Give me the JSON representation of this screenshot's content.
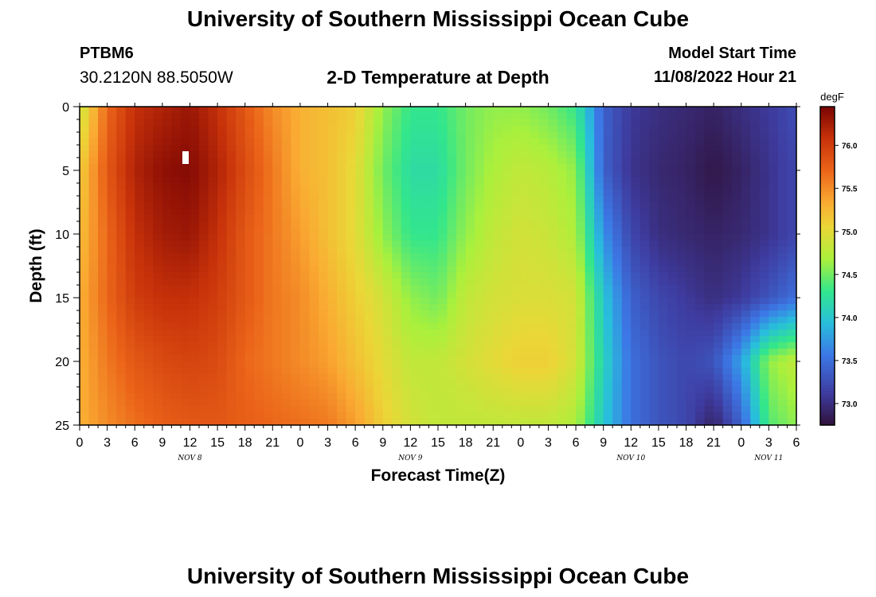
{
  "header": {
    "title": "University of Southern Mississippi Ocean Cube",
    "station_id": "PTBM6",
    "coordinates": "30.2120N  88.5050W",
    "subtitle": "2-D Temperature at Depth",
    "start_label": "Model Start Time",
    "start_value": "11/08/2022 Hour 21"
  },
  "footer": {
    "title": "University of Southern Mississippi Ocean Cube"
  },
  "chart_data": {
    "type": "heatmap",
    "title": "2-D Temperature at Depth",
    "xlabel": "Forecast Time(Z)",
    "ylabel": "Depth (ft)",
    "colorbar_label": "degF",
    "x_tick_labels": [
      "0",
      "3",
      "6",
      "9",
      "12",
      "15",
      "18",
      "21",
      "0",
      "3",
      "6",
      "9",
      "12",
      "15",
      "18",
      "21",
      "0",
      "3",
      "6",
      "9",
      "12",
      "15",
      "18",
      "21",
      "0",
      "3",
      "6"
    ],
    "x_date_labels": [
      {
        "label": "NOV 8",
        "hour_offset": 12
      },
      {
        "label": "NOV 9",
        "hour_offset": 36
      },
      {
        "label": "NOV 10",
        "hour_offset": 60
      },
      {
        "label": "NOV 11",
        "hour_offset": 75
      }
    ],
    "xlim": [
      0,
      78
    ],
    "y_ticks": [
      0,
      5,
      10,
      15,
      20,
      25
    ],
    "ylim": [
      0,
      25
    ],
    "colorbar_ticks": [
      73.0,
      73.5,
      74.0,
      74.5,
      75.0,
      75.5,
      76.0
    ],
    "colorbar_range": [
      72.75,
      76.45
    ],
    "depths_ft": [
      0,
      5,
      10,
      15,
      20,
      25
    ],
    "times_h": [
      0,
      3,
      6,
      9,
      12,
      15,
      18,
      21,
      24,
      27,
      30,
      33,
      36,
      39,
      42,
      45,
      48,
      51,
      54,
      57,
      60,
      63,
      66,
      69,
      72,
      75,
      78
    ],
    "temperature_degF": [
      [
        74.8,
        75.7,
        76.1,
        76.2,
        76.3,
        76.1,
        75.8,
        75.5,
        75.3,
        75.2,
        75.1,
        74.6,
        74.3,
        74.3,
        74.5,
        74.6,
        74.6,
        74.5,
        74.3,
        73.4,
        73.1,
        73.0,
        72.95,
        72.9,
        73.0,
        73.1,
        73.25
      ],
      [
        75.1,
        75.8,
        76.2,
        76.35,
        76.4,
        76.2,
        75.9,
        75.6,
        75.3,
        75.2,
        75.0,
        74.5,
        74.2,
        74.2,
        74.5,
        74.7,
        74.8,
        74.75,
        74.6,
        73.4,
        73.05,
        72.95,
        72.9,
        72.8,
        72.9,
        73.05,
        73.2
      ],
      [
        75.2,
        75.7,
        76.1,
        76.25,
        76.3,
        76.1,
        75.8,
        75.6,
        75.4,
        75.2,
        75.0,
        74.6,
        74.3,
        74.3,
        74.6,
        74.8,
        74.9,
        74.85,
        74.7,
        73.7,
        73.2,
        73.0,
        72.95,
        72.9,
        72.95,
        73.05,
        73.2
      ],
      [
        75.3,
        75.7,
        76.0,
        76.1,
        76.1,
        76.0,
        75.8,
        75.6,
        75.5,
        75.3,
        75.1,
        74.9,
        74.6,
        74.5,
        74.8,
        74.9,
        74.95,
        74.95,
        74.9,
        74.0,
        73.4,
        73.2,
        73.1,
        73.0,
        73.1,
        73.3,
        73.5
      ],
      [
        75.3,
        75.6,
        75.8,
        75.9,
        75.95,
        75.9,
        75.7,
        75.6,
        75.5,
        75.4,
        75.2,
        75.0,
        74.8,
        74.8,
        74.9,
        75.0,
        75.1,
        75.1,
        74.9,
        74.1,
        73.5,
        73.3,
        73.2,
        73.3,
        73.8,
        74.6,
        74.8
      ],
      [
        75.3,
        75.5,
        75.65,
        75.75,
        75.8,
        75.8,
        75.75,
        75.7,
        75.65,
        75.6,
        75.4,
        75.1,
        74.9,
        74.8,
        74.8,
        74.8,
        74.8,
        74.8,
        74.7,
        74.0,
        73.5,
        73.3,
        73.2,
        72.9,
        73.4,
        74.4,
        74.6
      ]
    ],
    "grid": false,
    "colorbar_position": "right"
  }
}
